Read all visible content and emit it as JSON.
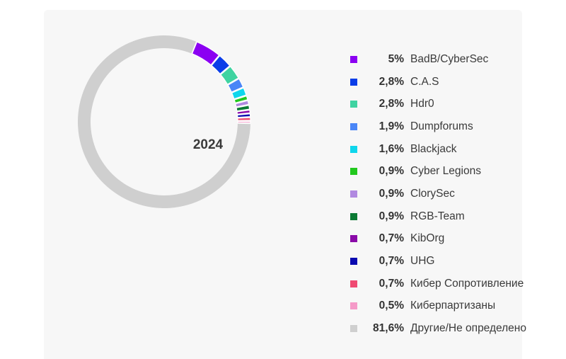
{
  "chart_data": {
    "type": "pie",
    "variant": "donut",
    "center_label": "2024",
    "legend_position": "right",
    "start_series": "BadB/CyberSec",
    "slices": [
      {
        "label": "BadB/CyberSec",
        "value": 5,
        "value_label": "5%",
        "color": "#8b00f2"
      },
      {
        "label": "C.A.S",
        "value": 2.8,
        "value_label": "2,8%",
        "color": "#0a3de8"
      },
      {
        "label": "Hdr0",
        "value": 2.8,
        "value_label": "2,8%",
        "color": "#3fd3a1"
      },
      {
        "label": "Dumpforums",
        "value": 1.9,
        "value_label": "1,9%",
        "color": "#4a86f7"
      },
      {
        "label": "Blackjack",
        "value": 1.6,
        "value_label": "1,6%",
        "color": "#0fd6ec"
      },
      {
        "label": "Cyber Legions",
        "value": 0.9,
        "value_label": "0,9%",
        "color": "#22c81e"
      },
      {
        "label": "ClorySec",
        "value": 0.9,
        "value_label": "0,9%",
        "color": "#b189e0"
      },
      {
        "label": "RGB-Team",
        "value": 0.9,
        "value_label": "0,9%",
        "color": "#0b7a34"
      },
      {
        "label": "KibOrg",
        "value": 0.7,
        "value_label": "0,7%",
        "color": "#8a0aa8"
      },
      {
        "label": "UHG",
        "value": 0.7,
        "value_label": "0,7%",
        "color": "#0a0ab0"
      },
      {
        "label": "Кибер Сопротивление",
        "value": 0.7,
        "value_label": "0,7%",
        "color": "#ef4a72"
      },
      {
        "label": "Киберпартизаны",
        "value": 0.5,
        "value_label": "0,5%",
        "color": "#f59ac8"
      },
      {
        "label": "Другие/Не определено",
        "value": 81.6,
        "value_label": "81,6%",
        "color": "#cfcfcf"
      }
    ]
  }
}
